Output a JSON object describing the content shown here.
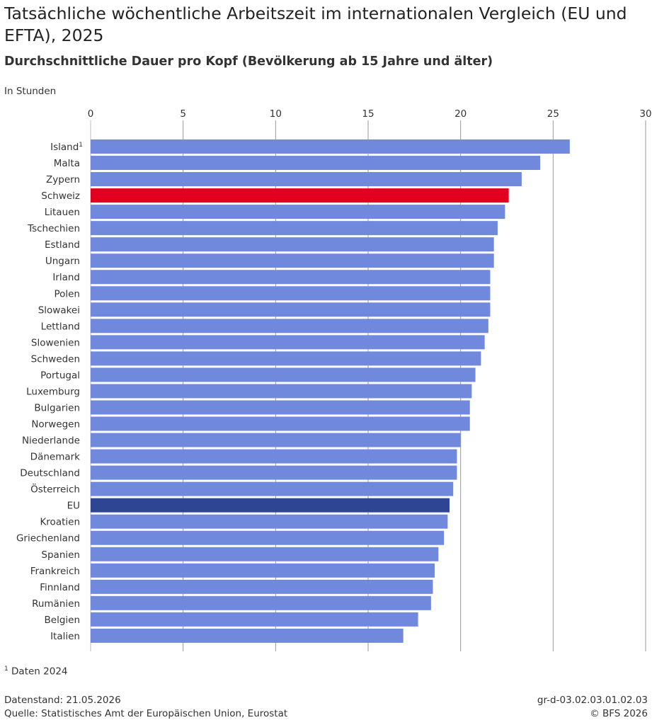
{
  "header": {
    "title": "Tatsächliche wöchentliche Arbeitszeit im internationalen Vergleich (EU und EFTA), 2025",
    "subtitle": "Durchschnittliche Dauer pro Kopf (Bevölkerung ab 15 Jahre und älter)",
    "unit": "In Stunden"
  },
  "footer": {
    "footnote_mark": "1",
    "footnote": "Daten 2024",
    "status": "Datenstand: 21.05.2026",
    "source": "Quelle: Statistisches Amt der Europäischen Union, Eurostat",
    "code": "gr-d-03.02.03.01.02.03",
    "copyright": "© BFS 2026"
  },
  "colors": {
    "default": "#7189dc",
    "highlight": "#e1001f",
    "eu": "#2e4593",
    "grid": "#9a9a9a",
    "text": "#333333"
  },
  "chart_data": {
    "type": "bar",
    "orientation": "horizontal",
    "xlim": [
      0,
      30
    ],
    "ticks": [
      0,
      5,
      10,
      15,
      20,
      25,
      30
    ],
    "grid": true,
    "categories": [
      "Island",
      "Malta",
      "Zypern",
      "Schweiz",
      "Litauen",
      "Tschechien",
      "Estland",
      "Ungarn",
      "Irland",
      "Polen",
      "Slowakei",
      "Lettland",
      "Slowenien",
      "Schweden",
      "Portugal",
      "Luxemburg",
      "Bulgarien",
      "Norwegen",
      "Niederlande",
      "Dänemark",
      "Deutschland",
      "Österreich",
      "EU",
      "Kroatien",
      "Griechenland",
      "Spanien",
      "Frankreich",
      "Finnland",
      "Rumänien",
      "Belgien",
      "Italien"
    ],
    "category_marks": {
      "Island": "1"
    },
    "values": [
      25.9,
      24.3,
      23.3,
      22.6,
      22.4,
      22.0,
      21.8,
      21.8,
      21.6,
      21.6,
      21.6,
      21.5,
      21.3,
      21.1,
      20.8,
      20.6,
      20.5,
      20.5,
      20.0,
      19.8,
      19.8,
      19.6,
      19.4,
      19.3,
      19.1,
      18.8,
      18.6,
      18.5,
      18.4,
      17.7,
      16.9
    ],
    "highlight": {
      "Schweiz": "highlight",
      "EU": "eu"
    }
  }
}
